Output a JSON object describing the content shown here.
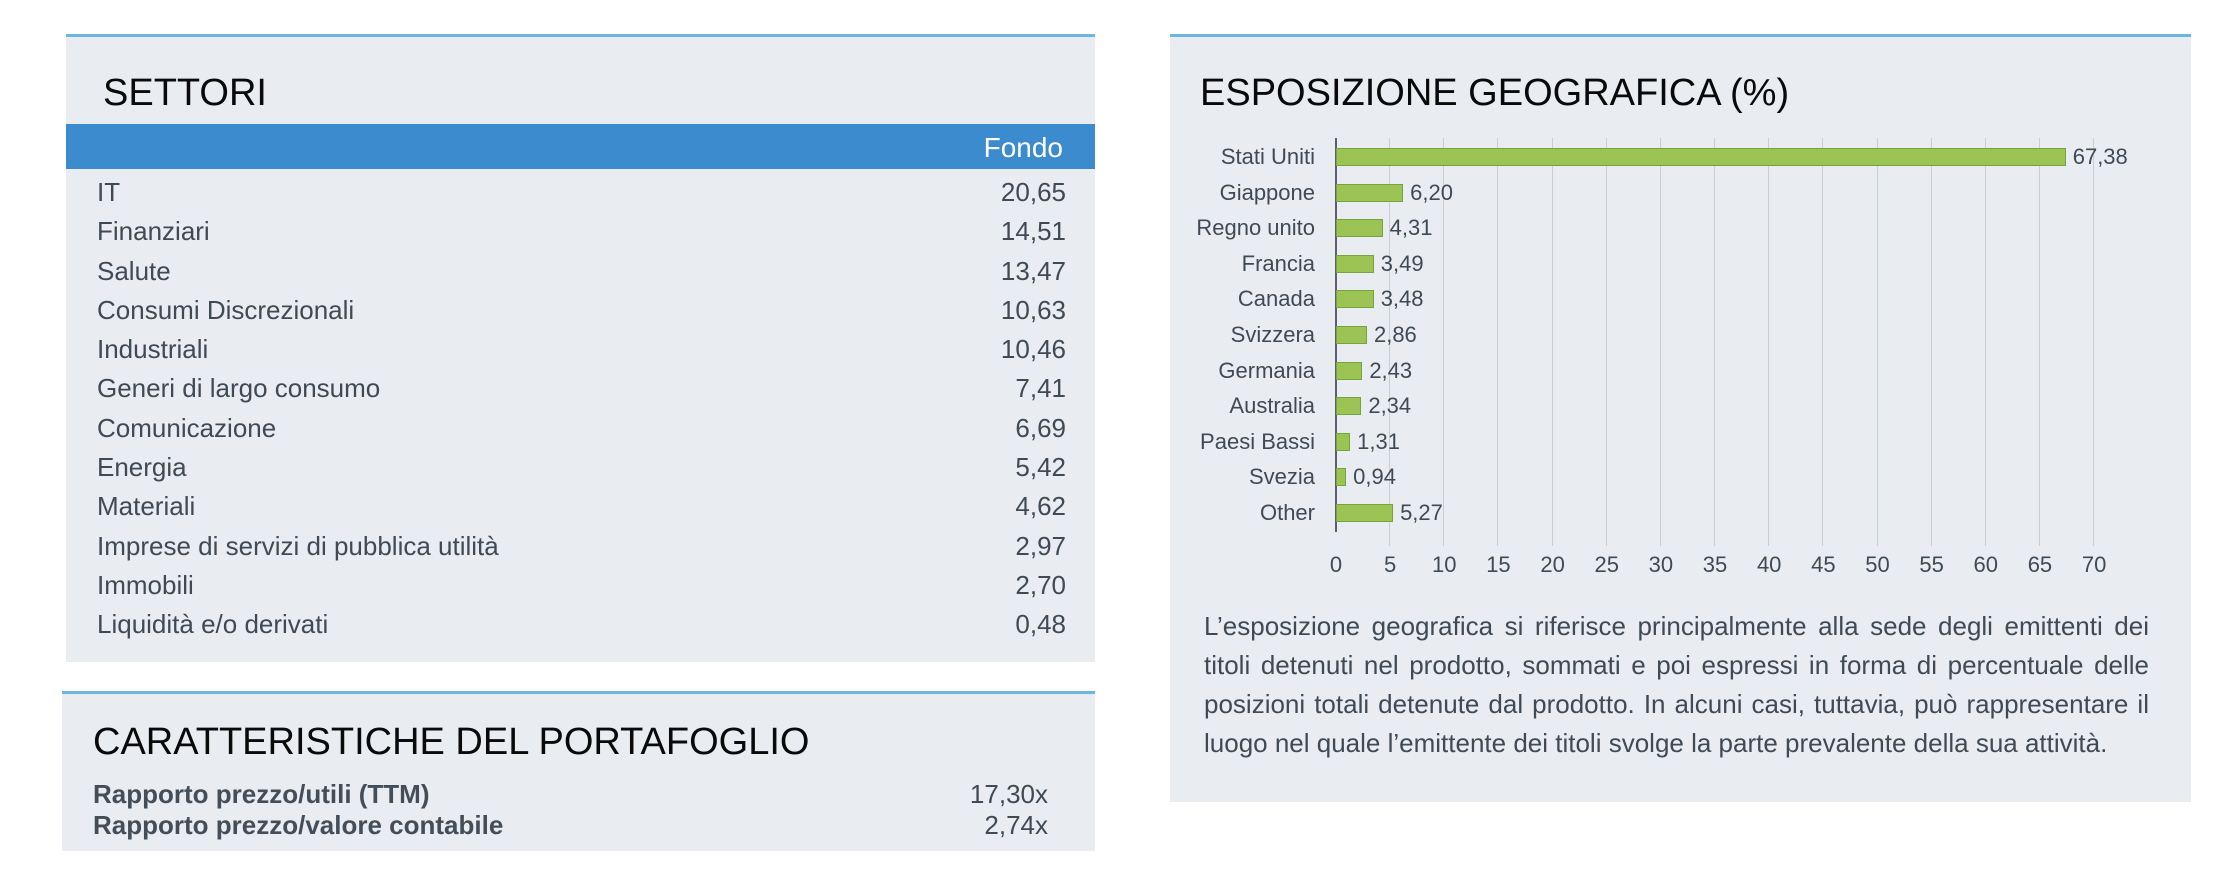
{
  "settori": {
    "title": "SETTORI",
    "column_header": "Fondo",
    "rows": [
      {
        "label": "IT",
        "value": "20,65"
      },
      {
        "label": "Finanziari",
        "value": "14,51"
      },
      {
        "label": "Salute",
        "value": "13,47"
      },
      {
        "label": "Consumi Discrezionali",
        "value": "10,63"
      },
      {
        "label": "Industriali",
        "value": "10,46"
      },
      {
        "label": "Generi di largo consumo",
        "value": "7,41"
      },
      {
        "label": "Comunicazione",
        "value": "6,69"
      },
      {
        "label": "Energia",
        "value": "5,42"
      },
      {
        "label": "Materiali",
        "value": "4,62"
      },
      {
        "label": "Imprese di servizi di pubblica utilità",
        "value": "2,97"
      },
      {
        "label": "Immobili",
        "value": "2,70"
      },
      {
        "label": "Liquidità e/o derivati",
        "value": "0,48"
      }
    ]
  },
  "caratteristiche": {
    "title": "CARATTERISTICHE DEL PORTAFOGLIO",
    "rows": [
      {
        "label": "Rapporto prezzo/utili (TTM)",
        "value": "17,30x"
      },
      {
        "label": "Rapporto prezzo/valore contabile",
        "value": "2,74x"
      }
    ]
  },
  "esposizione": {
    "title": "ESPOSIZIONE GEOGRAFICA (%)",
    "description": "L’esposizione geografica si riferisce principalmente alla sede degli emittenti dei titoli detenuti nel prodotto, sommati e poi espressi in forma di percentuale delle posizioni totali detenute dal prodotto. In alcuni casi, tuttavia, può rappresentare il luogo nel quale l’emittente dei titoli svolge la parte prevalente della sua attività."
  },
  "colors": {
    "panel_bg": "#e9edf1",
    "panel_top_border": "#6cb6e2",
    "table_header": "#3d8bcf",
    "bar_fill": "#9bc455",
    "bar_border": "#77a33e"
  },
  "chart_data": {
    "type": "bar",
    "orientation": "horizontal",
    "title": "ESPOSIZIONE GEOGRAFICA (%)",
    "categories": [
      "Stati Uniti",
      "Giappone",
      "Regno unito",
      "Francia",
      "Canada",
      "Svizzera",
      "Germania",
      "Australia",
      "Paesi Bassi",
      "Svezia",
      "Other"
    ],
    "values": [
      67.38,
      6.2,
      4.31,
      3.49,
      3.48,
      2.86,
      2.43,
      2.34,
      1.31,
      0.94,
      5.27
    ],
    "value_labels": [
      "67,38",
      "6,20",
      "4,31",
      "3,49",
      "3,48",
      "2,86",
      "2,43",
      "2,34",
      "1,31",
      "0,94",
      "5,27"
    ],
    "xlabel": "",
    "ylabel": "",
    "xlim": [
      0,
      70
    ],
    "xticks": [
      0,
      5,
      10,
      15,
      20,
      25,
      30,
      35,
      40,
      45,
      50,
      55,
      60,
      65,
      70
    ],
    "grid": true,
    "legend": "none"
  }
}
